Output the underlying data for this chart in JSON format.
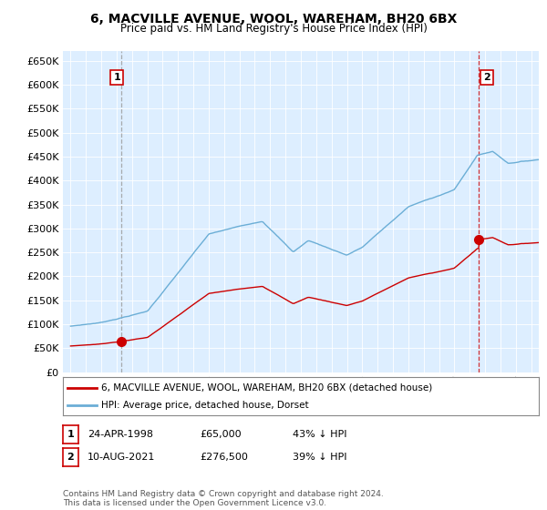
{
  "title": "6, MACVILLE AVENUE, WOOL, WAREHAM, BH20 6BX",
  "subtitle": "Price paid vs. HM Land Registry's House Price Index (HPI)",
  "legend_line1": "6, MACVILLE AVENUE, WOOL, WAREHAM, BH20 6BX (detached house)",
  "legend_line2": "HPI: Average price, detached house, Dorset",
  "annotation1_label": "1",
  "annotation1_date": "24-APR-1998",
  "annotation1_price": "£65,000",
  "annotation1_hpi": "43% ↓ HPI",
  "annotation2_label": "2",
  "annotation2_date": "10-AUG-2021",
  "annotation2_price": "£276,500",
  "annotation2_hpi": "39% ↓ HPI",
  "footnote": "Contains HM Land Registry data © Crown copyright and database right 2024.\nThis data is licensed under the Open Government Licence v3.0.",
  "sale1_x": 1998.31,
  "sale1_y": 65000,
  "sale2_x": 2021.61,
  "sale2_y": 276500,
  "hpi_color": "#6baed6",
  "sale_color": "#cc0000",
  "vline1_color": "#999999",
  "vline2_color": "#cc0000",
  "ylim": [
    0,
    670000
  ],
  "xlim": [
    1994.5,
    2025.5
  ],
  "ytick_step": 50000,
  "background_color": "#ffffff",
  "plot_bg_color": "#ddeeff",
  "grid_color": "#ffffff"
}
